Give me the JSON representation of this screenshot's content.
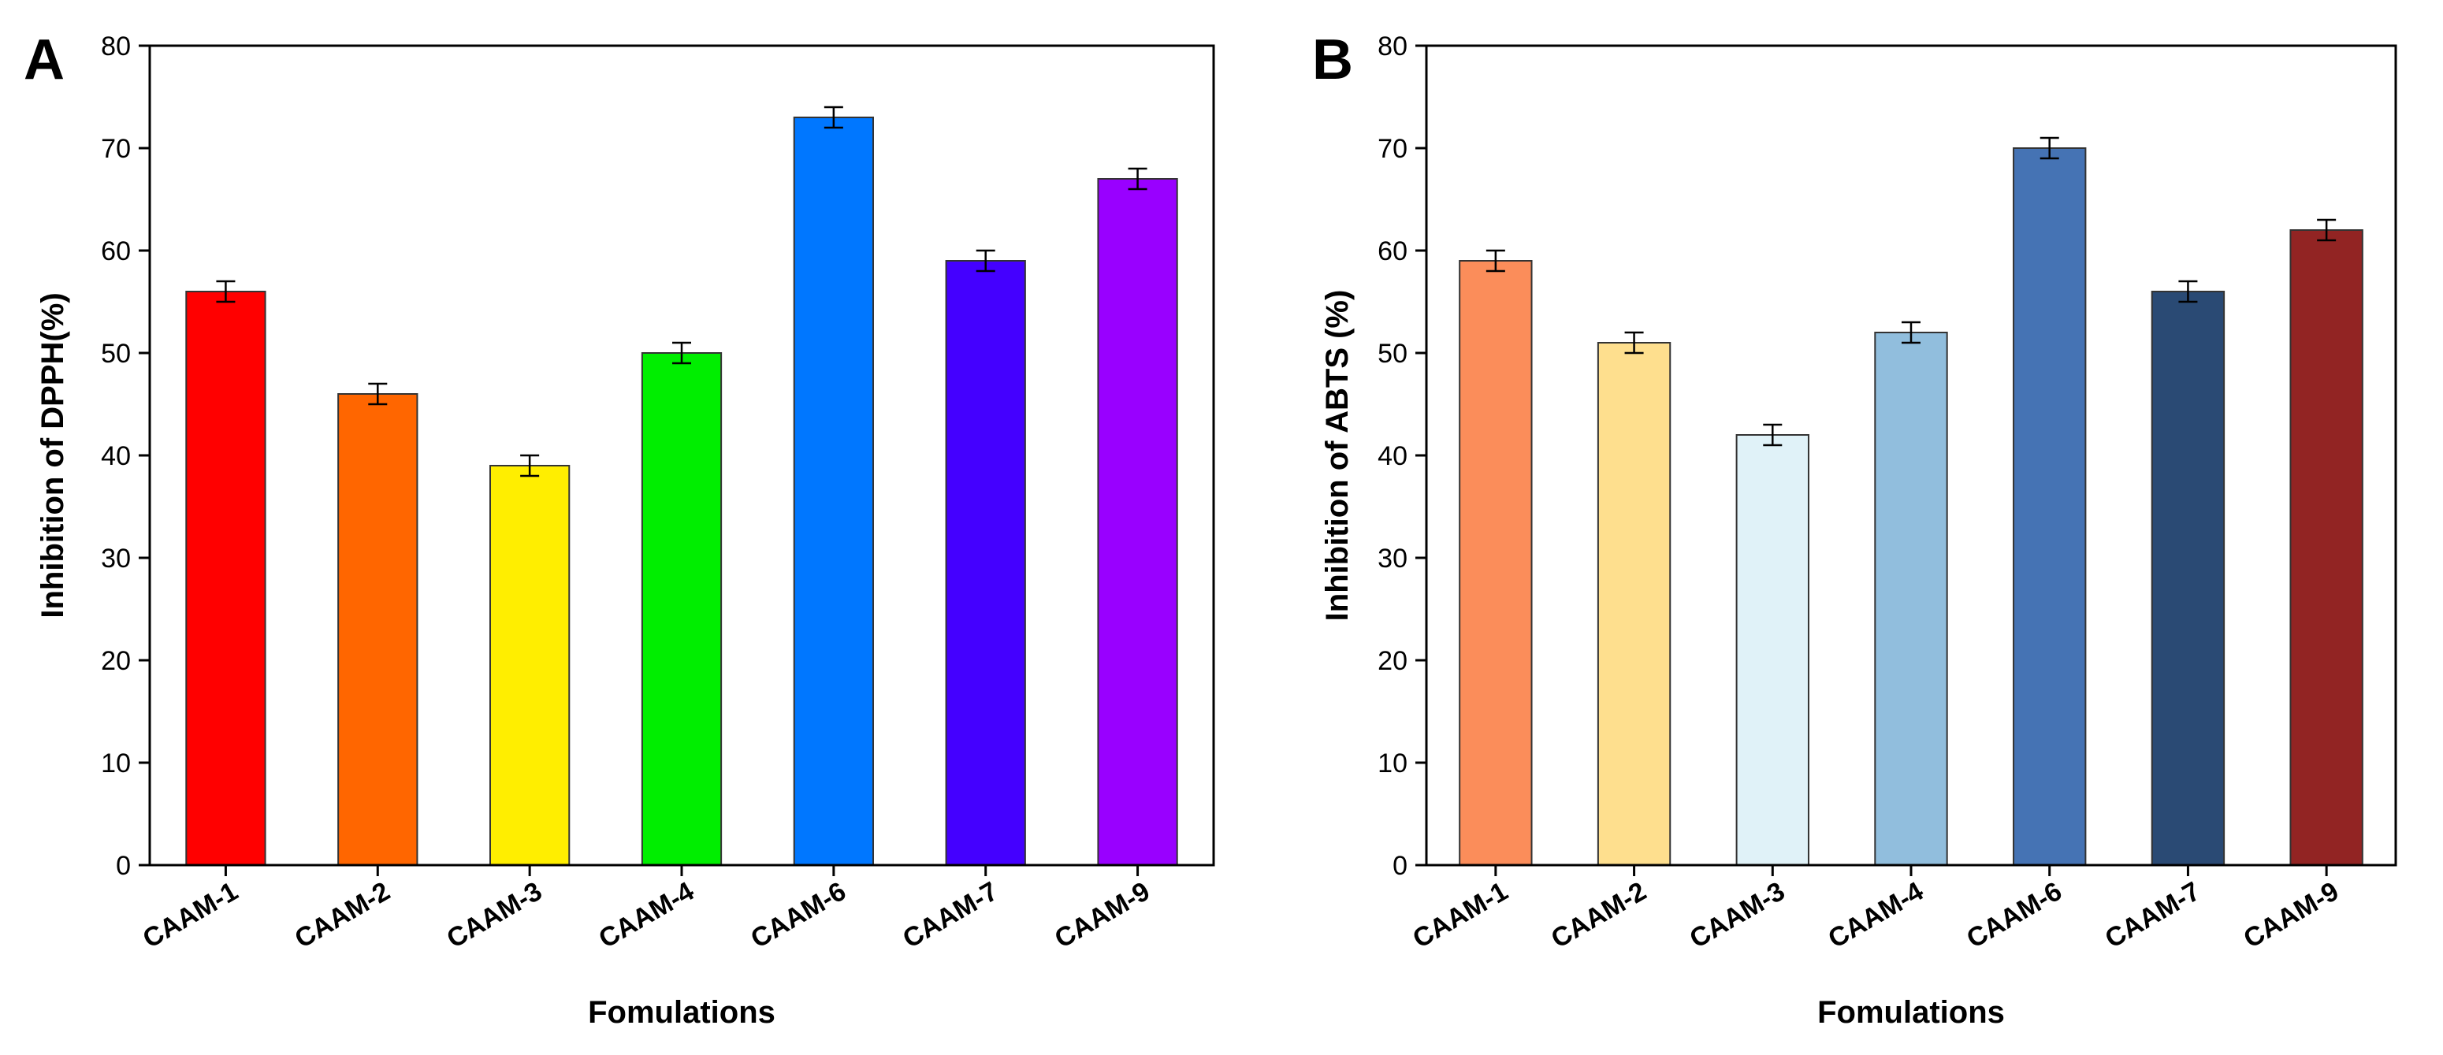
{
  "chart_data": [
    {
      "panel": "A",
      "type": "bar",
      "title": "",
      "xlabel": "Fomulations",
      "ylabel": "Inhibition of DPPH(%)",
      "categories": [
        "CAAM-1",
        "CAAM-2",
        "CAAM-3",
        "CAAM-4",
        "CAAM-6",
        "CAAM-7",
        "CAAM-9"
      ],
      "values": [
        56,
        46,
        39,
        50,
        73,
        59,
        67
      ],
      "errors": [
        1,
        1,
        1,
        1,
        1,
        1,
        1
      ],
      "colors": [
        "#ff0000",
        "#ff6600",
        "#ffee00",
        "#00ee00",
        "#0077ff",
        "#4400ff",
        "#9900ff"
      ],
      "ylim": [
        0,
        80
      ],
      "yticks": [
        0,
        10,
        20,
        30,
        40,
        50,
        60,
        70,
        80
      ],
      "grid": false
    },
    {
      "panel": "B",
      "type": "bar",
      "title": "",
      "xlabel": "Fomulations",
      "ylabel": "Inhibition of ABTS (%)",
      "categories": [
        "CAAM-1",
        "CAAM-2",
        "CAAM-3",
        "CAAM-4",
        "CAAM-6",
        "CAAM-7",
        "CAAM-9"
      ],
      "values": [
        59,
        51,
        42,
        52,
        70,
        56,
        62
      ],
      "errors": [
        1,
        1,
        1,
        1,
        1,
        1,
        1
      ],
      "colors": [
        "#fb8d5a",
        "#fedf8e",
        "#e0f2f8",
        "#91bedd",
        "#4573b4",
        "#2a4a74",
        "#922423"
      ],
      "ylim": [
        0,
        80
      ],
      "yticks": [
        0,
        10,
        20,
        30,
        40,
        50,
        60,
        70,
        80
      ],
      "grid": false
    }
  ]
}
